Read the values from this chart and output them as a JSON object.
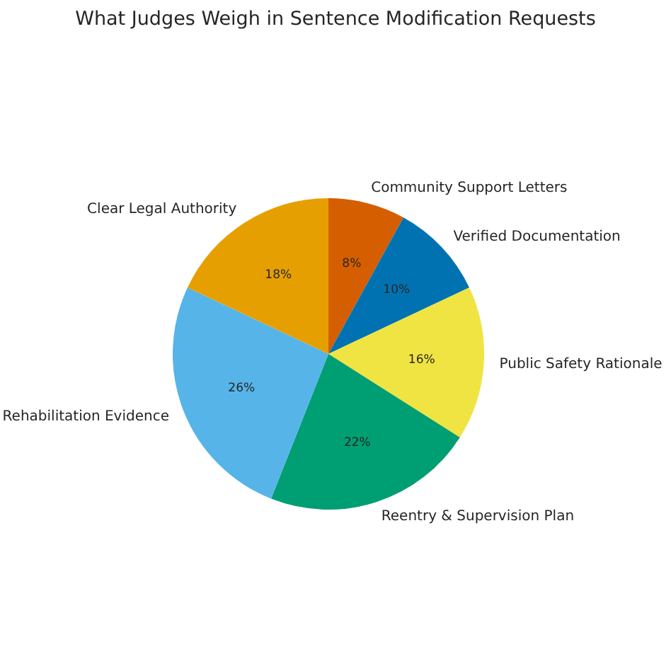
{
  "chart_data": {
    "type": "pie",
    "title": "What Judges Weigh in Sentence Modification Requests",
    "categories": [
      "Community Support Letters",
      "Verified Documentation",
      "Public Safety Rationale",
      "Reentry & Supervision Plan",
      "Rehabilitation Evidence",
      "Clear Legal Authority"
    ],
    "values": [
      8,
      10,
      16,
      22,
      26,
      18
    ],
    "colors": [
      "#d55e00",
      "#0072b2",
      "#f0e442",
      "#009e73",
      "#56b4e9",
      "#e69f00"
    ],
    "value_labels": [
      "8%",
      "10%",
      "16%",
      "22%",
      "26%",
      "18%"
    ]
  }
}
